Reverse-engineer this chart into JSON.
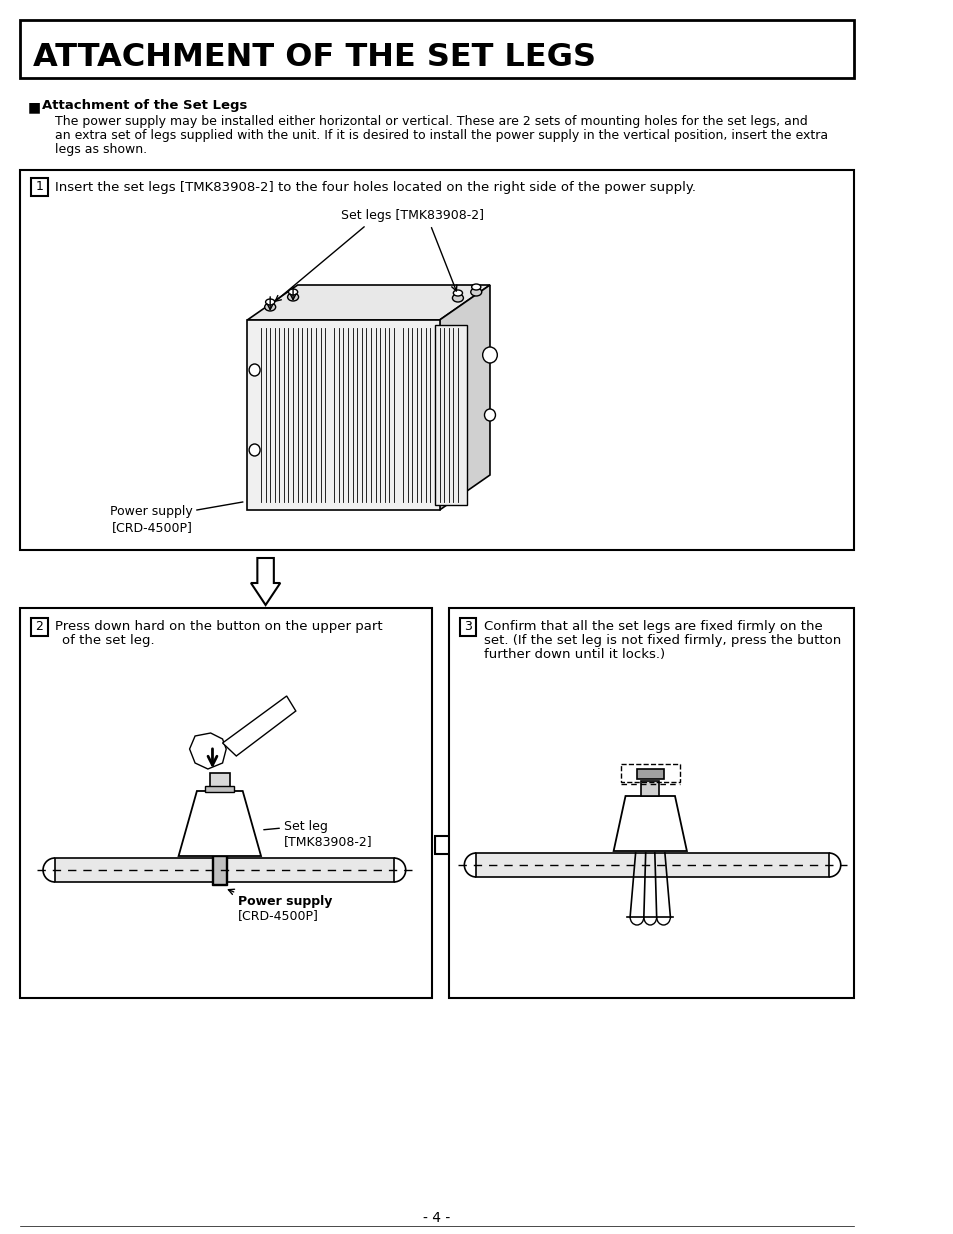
{
  "title": "ATTACHMENT OF THE SET LEGS",
  "bg_color": "#ffffff",
  "text_color": "#000000",
  "section_header": "Attachment of the Set Legs",
  "section_body": "The power supply may be installed either horizontal or vertical. These are 2 sets of mounting holes for the set legs, and\nan extra set of legs supplied with the unit. If it is desired to install the power supply in the vertical position, insert the extra\nlegs as shown.",
  "step1_text": "Insert the set legs [TMK83908-2] to the four holes located on the right side of the power supply.",
  "step1_label1": "Set legs [TMK83908-2]",
  "step1_label2": "Power supply\n[CRD-4500P]",
  "step2_text": "Press down hard on the button on the upper part\nof the set leg.",
  "step2_label1": "Set leg\n[TMK83908-2]",
  "step2_label2": "Power supply\n[CRD-4500P]",
  "step3_text": "Confirm that all the set legs are fixed firmly on the\nset. (If the set leg is not fixed firmly, press the button\nfurther down until it locks.)",
  "page_number": "- 4 -"
}
